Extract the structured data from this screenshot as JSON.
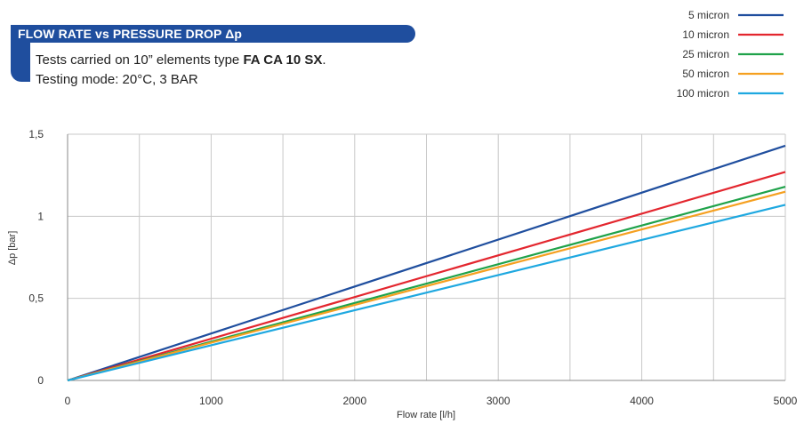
{
  "header": {
    "title": "FLOW RATE vs PRESSURE DROP Δp",
    "line1_prefix": "Tests carried on 10” elements type ",
    "line1_bold": "FA CA 10 SX",
    "line1_suffix": ".",
    "line2": "Testing mode: 20°C, 3 BAR"
  },
  "colors": {
    "banner": "#1f4e9e",
    "grid": "#c8c8c8",
    "axis": "#888888"
  },
  "chart_data": {
    "type": "line",
    "title": "FLOW RATE vs PRESSURE DROP Δp",
    "xlabel": "Flow rate [l/h]",
    "ylabel": "Δp [bar]",
    "xlim": [
      0,
      5000
    ],
    "ylim": [
      0,
      1.5
    ],
    "xticks": [
      0,
      1000,
      2000,
      3000,
      4000,
      5000
    ],
    "xtick_labels": [
      "0",
      "1000",
      "2000",
      "3000",
      "4000",
      "5000"
    ],
    "yticks": [
      0,
      0.5,
      1,
      1.5
    ],
    "ytick_labels": [
      "0",
      "0,5",
      "1",
      "1,5"
    ],
    "x_gridlines": [
      0,
      500,
      1000,
      1500,
      2000,
      2500,
      3000,
      3500,
      4000,
      4500,
      5000
    ],
    "grid": true,
    "legend_position": "top-right",
    "series": [
      {
        "name": "5 micron",
        "color": "#1f4e9e",
        "x": [
          0,
          5000
        ],
        "y": [
          0,
          1.43
        ]
      },
      {
        "name": "10 micron",
        "color": "#e3262e",
        "x": [
          0,
          5000
        ],
        "y": [
          0,
          1.27
        ]
      },
      {
        "name": "25 micron",
        "color": "#1fa24a",
        "x": [
          0,
          5000
        ],
        "y": [
          0,
          1.18
        ]
      },
      {
        "name": "50 micron",
        "color": "#f5a020",
        "x": [
          0,
          5000
        ],
        "y": [
          0,
          1.15
        ]
      },
      {
        "name": "100 micron",
        "color": "#1ea8e0",
        "x": [
          0,
          5000
        ],
        "y": [
          0,
          1.07
        ]
      }
    ]
  }
}
